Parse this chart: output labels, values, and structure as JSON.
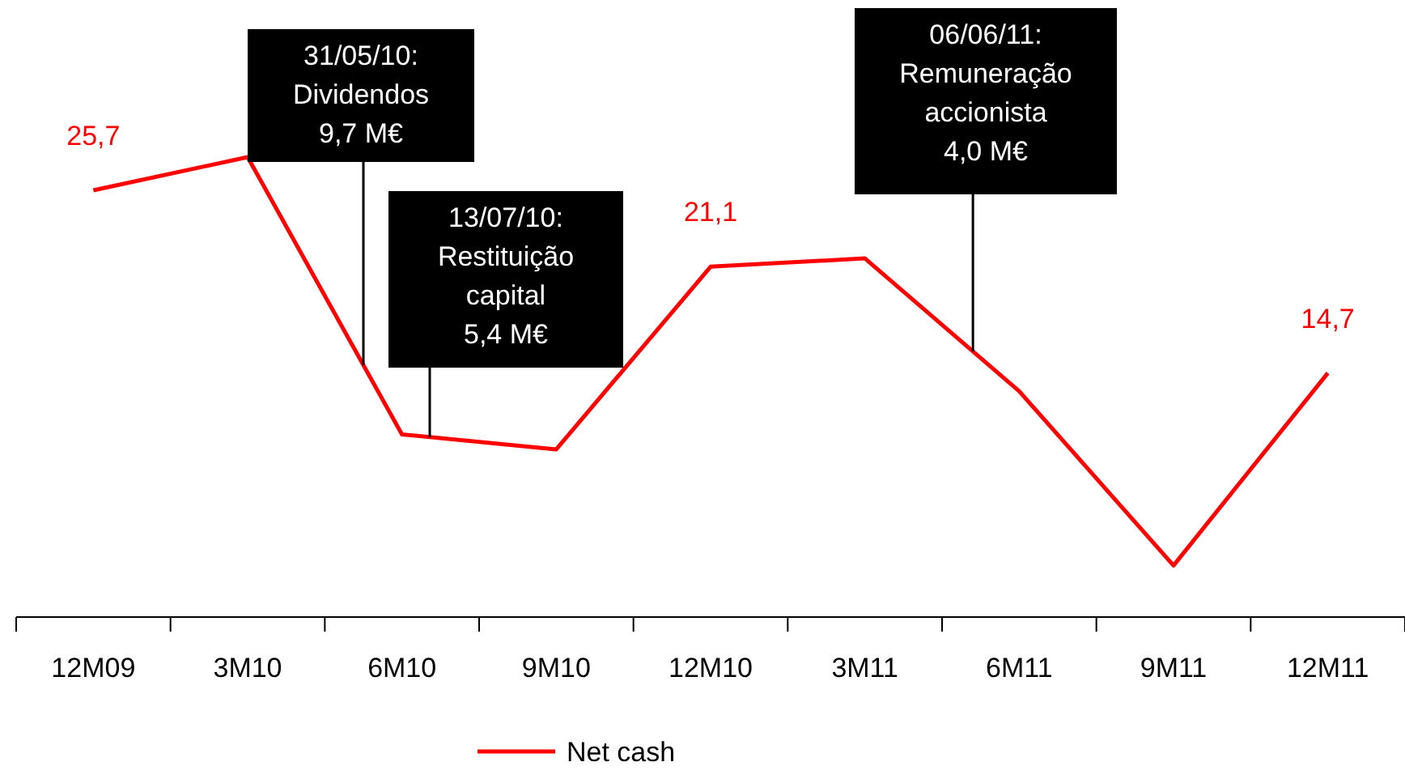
{
  "chart_data": {
    "type": "line",
    "categories": [
      "12M09",
      "3M10",
      "6M10",
      "9M10",
      "12M10",
      "3M11",
      "6M11",
      "9M11",
      "12M11"
    ],
    "series": [
      {
        "name": "Net cash",
        "color": "#ff0000",
        "values": [
          25.7,
          27.7,
          11.0,
          10.1,
          21.1,
          21.6,
          13.6,
          3.1,
          14.7
        ],
        "value_labels": [
          "25,7",
          null,
          null,
          null,
          "21,1",
          null,
          null,
          null,
          "14,7"
        ]
      }
    ],
    "annotations": [
      "31/05/10:\nDividendos\n9,7 M€",
      "13/07/10:\nRestituição\ncapital\n5,4 M€",
      "06/06/11:\nRemuneração\naccionista\n4,0 M€"
    ],
    "legend": "bottom",
    "marker": "none",
    "line_style": "solid",
    "grid": false
  }
}
